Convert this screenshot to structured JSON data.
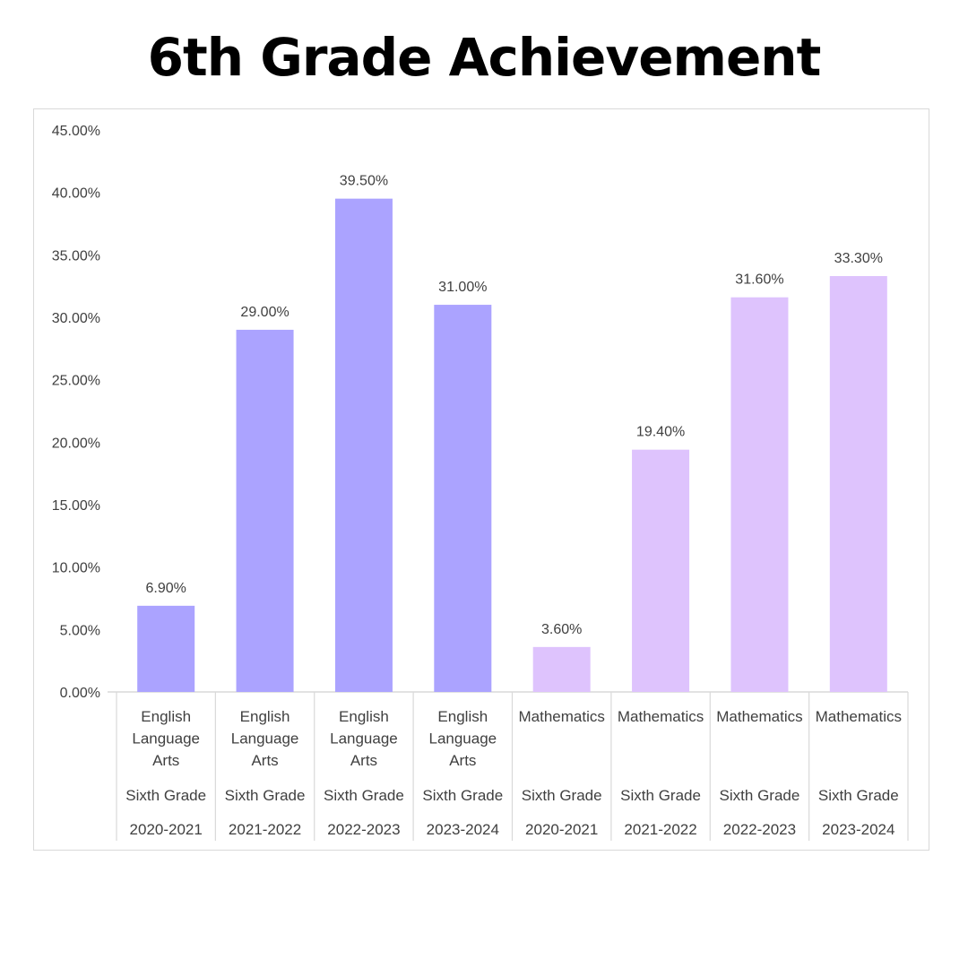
{
  "title": "6th Grade Achievement",
  "colors": {
    "ela": "#aba3ff",
    "math": "#dec3fd",
    "axis": "#d9d9d9",
    "text": "#404040"
  },
  "chart_data": {
    "type": "bar",
    "title": "6th Grade Achievement",
    "xlabel": "",
    "ylabel": "",
    "ylim": [
      0,
      45
    ],
    "yticks": [
      0,
      5,
      10,
      15,
      20,
      25,
      30,
      35,
      40,
      45
    ],
    "ytick_labels": [
      "0.00%",
      "5.00%",
      "10.00%",
      "15.00%",
      "20.00%",
      "25.00%",
      "30.00%",
      "35.00%",
      "40.00%",
      "45.00%"
    ],
    "grid": false,
    "legend": "none",
    "categories": [
      {
        "subject": [
          "English",
          "Language",
          "Arts"
        ],
        "grade": "Sixth Grade",
        "year": "2020-2021"
      },
      {
        "subject": [
          "English",
          "Language",
          "Arts"
        ],
        "grade": "Sixth Grade",
        "year": "2021-2022"
      },
      {
        "subject": [
          "English",
          "Language",
          "Arts"
        ],
        "grade": "Sixth Grade",
        "year": "2022-2023"
      },
      {
        "subject": [
          "English",
          "Language",
          "Arts"
        ],
        "grade": "Sixth Grade",
        "year": "2023-2024"
      },
      {
        "subject": [
          "Mathematics"
        ],
        "grade": "Sixth Grade",
        "year": "2020-2021"
      },
      {
        "subject": [
          "Mathematics"
        ],
        "grade": "Sixth Grade",
        "year": "2021-2022"
      },
      {
        "subject": [
          "Mathematics"
        ],
        "grade": "Sixth Grade",
        "year": "2022-2023"
      },
      {
        "subject": [
          "Mathematics"
        ],
        "grade": "Sixth Grade",
        "year": "2023-2024"
      }
    ],
    "values": [
      6.9,
      29.0,
      39.5,
      31.0,
      3.6,
      19.4,
      31.6,
      33.3
    ],
    "value_labels": [
      "6.90%",
      "29.00%",
      "39.50%",
      "31.00%",
      "3.60%",
      "19.40%",
      "31.60%",
      "33.30%"
    ],
    "bar_groups": [
      "ela",
      "ela",
      "ela",
      "ela",
      "math",
      "math",
      "math",
      "math"
    ]
  }
}
